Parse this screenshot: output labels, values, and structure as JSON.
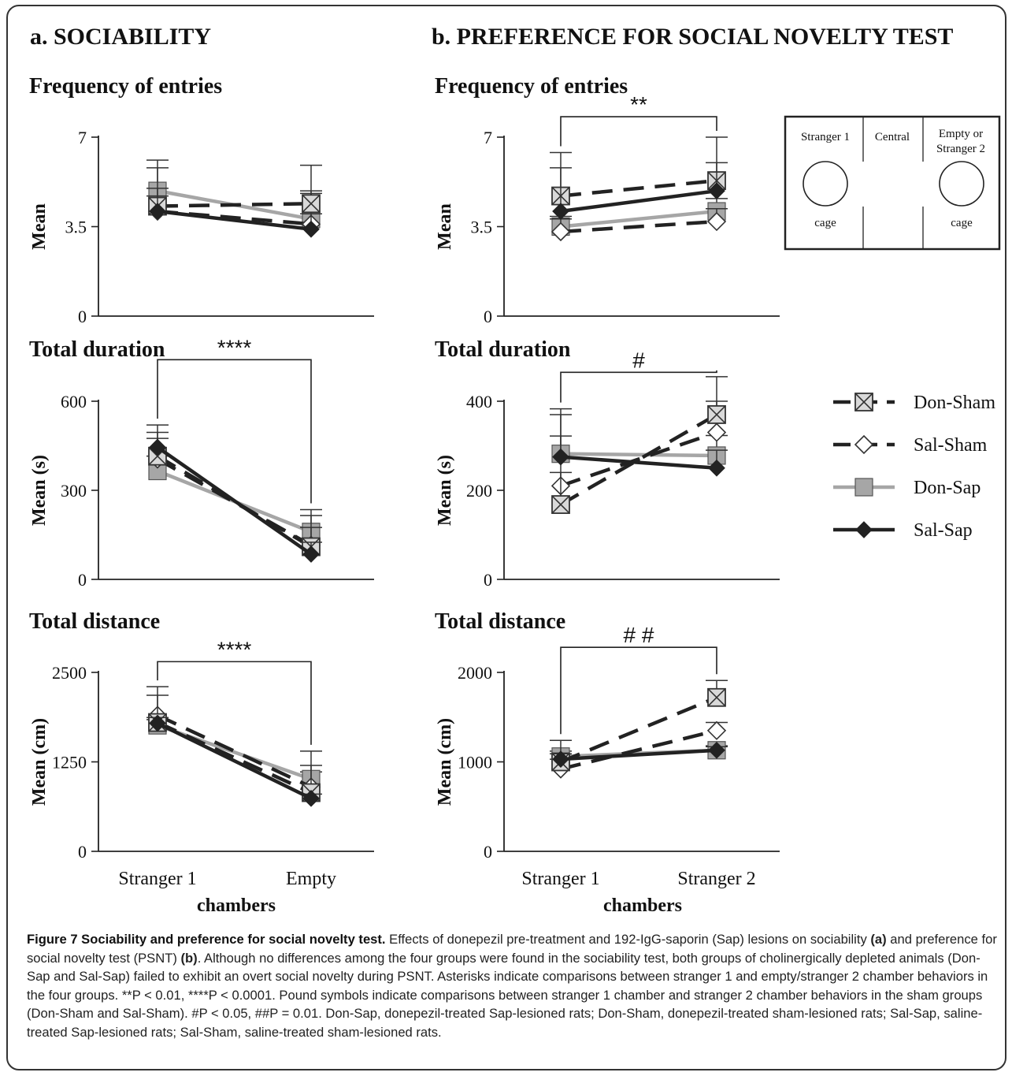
{
  "panel_a_title": "a. SOCIABILITY",
  "panel_b_title": "b. PREFERENCE FOR SOCIAL NOVELTY TEST",
  "x_axis_label": "chambers",
  "chamber_diagram": {
    "cells": [
      "Stranger 1",
      "Central",
      "Empty or",
      "Stranger 2"
    ],
    "cage_label": "cage"
  },
  "legend": [
    {
      "name": "Don-Sham",
      "line": "dashed",
      "color": "#222222",
      "marker": "box-x"
    },
    {
      "name": "Sal-Sham",
      "line": "dashed",
      "color": "#222222",
      "marker": "diamond-open"
    },
    {
      "name": "Don-Sap",
      "line": "solid",
      "color": "#a6a6a6",
      "marker": "square-gray"
    },
    {
      "name": "Sal-Sap",
      "line": "solid",
      "color": "#222222",
      "marker": "diamond-filled"
    }
  ],
  "chart_data": [
    {
      "type": "line",
      "panel": "a",
      "title": "Frequency of entries",
      "ylabel": "Mean",
      "categories": [
        "Stranger 1",
        "Empty"
      ],
      "ylim": [
        0,
        7
      ],
      "yticks": [
        "0",
        "3.5",
        "7"
      ],
      "series": [
        {
          "name": "Don-Sham",
          "values": [
            4.3,
            4.4
          ],
          "err": [
            1.8,
            1.5
          ]
        },
        {
          "name": "Sal-Sham",
          "values": [
            4.1,
            3.6
          ],
          "err": [
            0.9,
            1.3
          ]
        },
        {
          "name": "Don-Sap",
          "values": [
            4.9,
            3.8
          ],
          "err": [
            0.9,
            1.0
          ]
        },
        {
          "name": "Sal-Sap",
          "values": [
            4.1,
            3.4
          ],
          "err": [
            0.6,
            0.6
          ]
        }
      ]
    },
    {
      "type": "line",
      "panel": "b",
      "title": "Frequency of entries",
      "ylabel": "Mean",
      "categories": [
        "Stranger 1",
        "Stranger 2"
      ],
      "ylim": [
        0,
        7
      ],
      "yticks": [
        "0",
        "3.5",
        "7"
      ],
      "significance": {
        "label": "**",
        "bar_value": 7.8
      },
      "series": [
        {
          "name": "Don-Sham",
          "values": [
            4.7,
            5.3
          ],
          "err": [
            1.7,
            1.7
          ]
        },
        {
          "name": "Sal-Sham",
          "values": [
            3.3,
            3.7
          ],
          "err": [
            0.5,
            0.5
          ]
        },
        {
          "name": "Don-Sap",
          "values": [
            3.5,
            4.1
          ],
          "err": [
            0.4,
            0.5
          ]
        },
        {
          "name": "Sal-Sap",
          "values": [
            4.1,
            4.9
          ],
          "err": [
            1.7,
            1.1
          ]
        }
      ]
    },
    {
      "type": "line",
      "panel": "a",
      "title": "Total duration",
      "ylabel": "Mean (s)",
      "categories": [
        "Stranger 1",
        "Empty"
      ],
      "ylim": [
        0,
        600
      ],
      "yticks": [
        "0",
        "300",
        "600"
      ],
      "significance": {
        "label": "****",
        "bar_value": 740
      },
      "series": [
        {
          "name": "Don-Sham",
          "values": [
            415,
            110
          ],
          "err": [
            105,
            125
          ]
        },
        {
          "name": "Sal-Sham",
          "values": [
            405,
            115
          ],
          "err": [
            70,
            60
          ]
        },
        {
          "name": "Don-Sap",
          "values": [
            365,
            160
          ],
          "err": [
            50,
            55
          ]
        },
        {
          "name": "Sal-Sap",
          "values": [
            445,
            85
          ],
          "err": [
            50,
            40
          ]
        }
      ]
    },
    {
      "type": "line",
      "panel": "b",
      "title": "Total duration",
      "ylabel": "Mean (s)",
      "categories": [
        "Stranger 1",
        "Stranger 2"
      ],
      "ylim": [
        0,
        400
      ],
      "yticks": [
        "0",
        "200",
        "400"
      ],
      "significance": {
        "label": "#",
        "bar_value": 465
      },
      "series": [
        {
          "name": "Don-Sham",
          "values": [
            168,
            370
          ],
          "err": [
            215,
            85
          ]
        },
        {
          "name": "Sal-Sham",
          "values": [
            210,
            330
          ],
          "err": [
            30,
            70
          ]
        },
        {
          "name": "Don-Sap",
          "values": [
            282,
            278
          ],
          "err": [
            40,
            45
          ]
        },
        {
          "name": "Sal-Sap",
          "values": [
            275,
            250
          ],
          "err": [
            95,
            40
          ]
        }
      ]
    },
    {
      "type": "line",
      "panel": "a",
      "title": "Total distance",
      "ylabel": "Mean (cm)",
      "categories": [
        "Stranger 1",
        "Empty"
      ],
      "ylim": [
        0,
        2500
      ],
      "yticks": [
        "0",
        "1250",
        "2500"
      ],
      "significance": {
        "label": "****",
        "bar_value": 2650
      },
      "series": [
        {
          "name": "Don-Sham",
          "values": [
            1800,
            820
          ],
          "err": [
            500,
            580
          ]
        },
        {
          "name": "Sal-Sham",
          "values": [
            1900,
            900
          ],
          "err": [
            280,
            300
          ]
        },
        {
          "name": "Don-Sap",
          "values": [
            1760,
            1010
          ],
          "err": [
            80,
            100
          ]
        },
        {
          "name": "Sal-Sap",
          "values": [
            1790,
            740
          ],
          "err": [
            80,
            60
          ]
        }
      ]
    },
    {
      "type": "line",
      "panel": "b",
      "title": "Total distance",
      "ylabel": "Mean (cm)",
      "categories": [
        "Stranger 1",
        "Stranger 2"
      ],
      "ylim": [
        0,
        2000
      ],
      "yticks": [
        "0",
        "1000",
        "2000"
      ],
      "significance": {
        "label": "# #",
        "bar_value": 2280
      },
      "series": [
        {
          "name": "Don-Sham",
          "values": [
            1000,
            1720
          ],
          "err": [
            240,
            190
          ]
        },
        {
          "name": "Sal-Sham",
          "values": [
            920,
            1350
          ],
          "err": [
            110,
            90
          ]
        },
        {
          "name": "Don-Sap",
          "values": [
            1060,
            1130
          ],
          "err": [
            60,
            50
          ]
        },
        {
          "name": "Sal-Sap",
          "values": [
            1030,
            1130
          ],
          "err": [
            60,
            40
          ]
        }
      ]
    }
  ],
  "caption": {
    "title": "Figure 7 Sociability and preference for social novelty test.",
    "seg1": " Effects of donepezil pre-treatment and 192-IgG-saporin (Sap) lesions on sociability ",
    "a_ref": "(a)",
    "seg2": " and preference for social novelty test (PSNT) ",
    "b_ref": "(b)",
    "seg3": ". Although no differences among the four groups were found in the sociability test, both groups of cholinergically depleted animals (Don-Sap and Sal-Sap) failed to exhibit an overt social novelty during PSNT. Asterisks indicate comparisons between stranger 1 and empty/stranger 2 chamber behaviors in the four groups. **P < 0.01, ****P < 0.0001. Pound symbols indicate comparisons between stranger 1 chamber and stranger 2 chamber behaviors in the sham groups (Don-Sham and Sal-Sham). #P < 0.05, ##P = 0.01. Don-Sap, donepezil-treated Sap-lesioned rats; Don-Sham, donepezil-treated sham-lesioned rats; Sal-Sap, saline-treated Sap-lesioned rats; Sal-Sham, saline-treated sham-lesioned rats."
  }
}
